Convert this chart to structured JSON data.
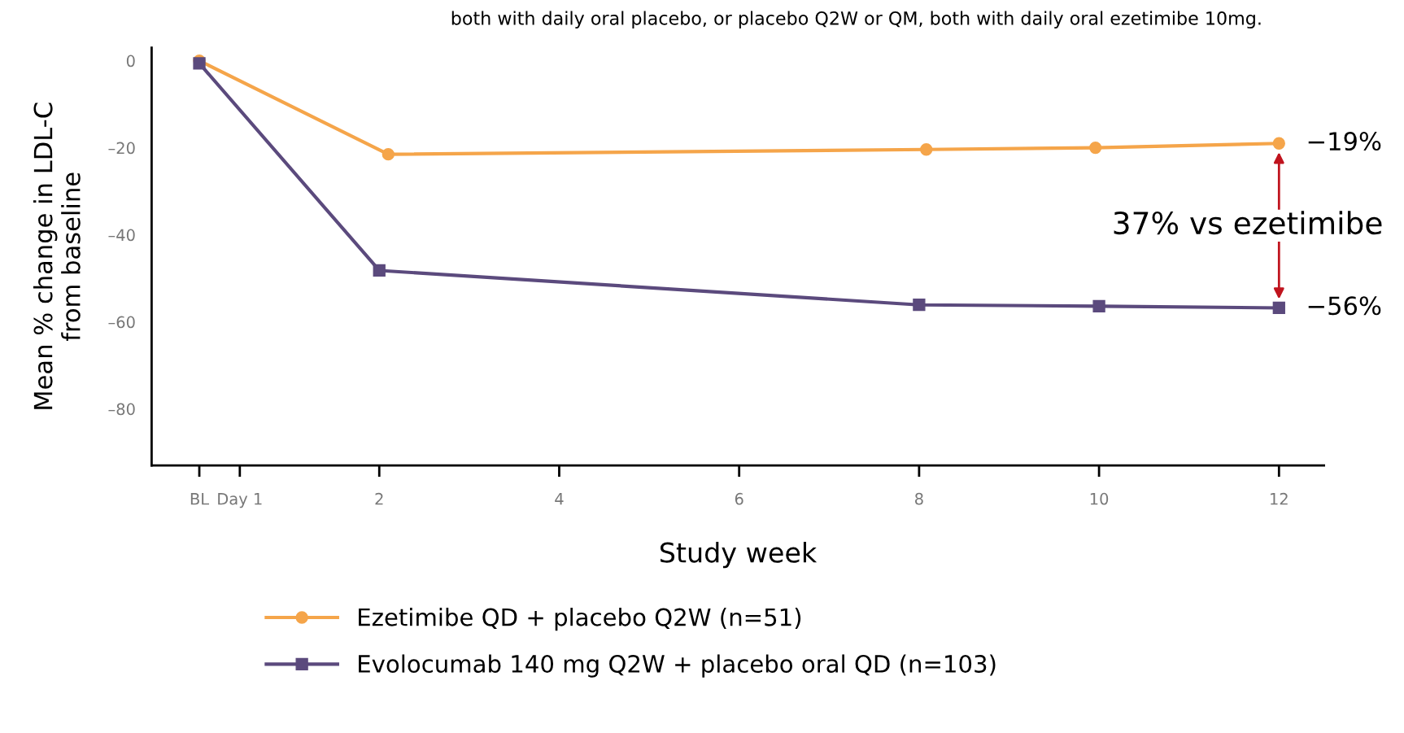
{
  "chart_data": {
    "type": "line",
    "xlabel": "Study week",
    "ylabel": "Mean % change in LDL-C\nfrom baseline",
    "xlim": [
      -0.53,
      12.5
    ],
    "ylim": [
      -93,
      3
    ],
    "xticks": [
      {
        "value": 0,
        "label": "BL"
      },
      {
        "value": 0.45,
        "label": "Day 1"
      },
      2,
      4,
      6,
      8,
      10,
      12
    ],
    "yticks": [
      {
        "value": 0,
        "label": "0"
      },
      {
        "value": -20,
        "label": "–20"
      },
      {
        "value": -40,
        "label": "–40"
      },
      {
        "value": -60,
        "label": "–60"
      },
      {
        "value": -80,
        "label": "–80"
      }
    ],
    "grid": false,
    "legend": "bottom",
    "line_style": "solid",
    "series": [
      {
        "name": "Ezetimibe QD + placebo Q2W (n=51)",
        "color": "#f5a54a",
        "marker": "circle",
        "x": [
          0,
          2.1,
          8.08,
          9.96,
          12
        ],
        "values": [
          0,
          -21.5,
          -20.4,
          -20,
          -19
        ]
      },
      {
        "name": "Evolocumab 140 mg Q2W + placebo oral QD (n=103)",
        "color": "#5b4a7d",
        "marker": "square",
        "x": [
          0,
          2,
          8,
          10,
          12
        ],
        "values": [
          -0.6,
          -48.2,
          -56.1,
          -56.4,
          -56.8
        ]
      }
    ],
    "annotations": [
      "both with daily oral placebo, or placebo Q2W or QM, both with daily oral ezetimibe 10mg.",
      {
        "text": "−19%",
        "x": 12,
        "y": -19
      },
      {
        "text": "−56%",
        "x": 12,
        "y": -56.8
      },
      "37% vs ezetimibe"
    ]
  }
}
